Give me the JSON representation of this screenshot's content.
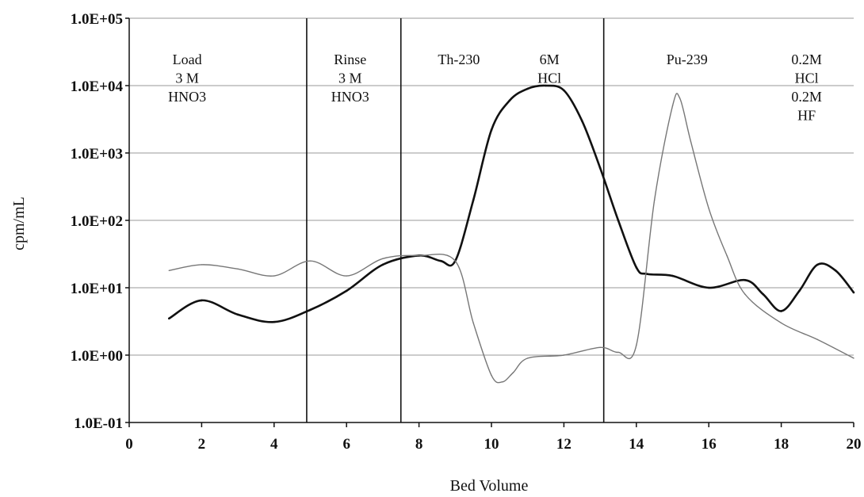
{
  "chart_data": {
    "type": "line",
    "title": "",
    "xlabel": "Bed Volume",
    "ylabel": "cpm/mL",
    "xlim": [
      0,
      20
    ],
    "ylim": [
      0.1,
      100000
    ],
    "yscale": "log",
    "grid": "horizontal",
    "legend": "none",
    "x_ticks": [
      0,
      2,
      4,
      6,
      8,
      10,
      12,
      14,
      16,
      18,
      20
    ],
    "x_tick_labels": [
      "0",
      "2",
      "4",
      "6",
      "8",
      "10",
      "12",
      "14",
      "16",
      "18",
      "20"
    ],
    "y_ticks": [
      0.1,
      1,
      10,
      100,
      1000,
      10000,
      100000
    ],
    "y_tick_labels": [
      "1.0E-01",
      "1.0E+00",
      "1.0E+01",
      "1.0E+02",
      "1.0E+03",
      "1.0E+04",
      "1.0E+05"
    ],
    "vertical_lines": [
      4.9,
      7.5,
      13.1
    ],
    "series": [
      {
        "color": "#111111",
        "x": [
          1.1,
          2.0,
          3.0,
          4.0,
          5.0,
          6.0,
          7.0,
          8.0,
          8.6,
          9.0,
          9.5,
          10.0,
          10.5,
          11.0,
          11.5,
          12.0,
          12.5,
          13.0,
          13.5,
          14.0,
          14.3,
          15.0,
          16.0,
          17.0,
          17.5,
          18.0,
          18.5,
          19.0,
          19.5,
          20.0
        ],
        "y": [
          3.5,
          6.5,
          4.0,
          3.1,
          4.7,
          9.0,
          22.0,
          30.0,
          25.0,
          25.0,
          200.0,
          2200.0,
          6000.0,
          9000.0,
          10000.0,
          8500.0,
          3000.0,
          600.0,
          100.0,
          20.0,
          16.0,
          15.0,
          10.0,
          13.0,
          8.0,
          4.5,
          9.0,
          22.0,
          18.0,
          8.5
        ]
      },
      {
        "color": "#777777",
        "x": [
          1.1,
          2.0,
          3.0,
          4.0,
          5.0,
          6.0,
          7.0,
          8.0,
          9.0,
          9.5,
          10.0,
          10.3,
          10.6,
          11.0,
          12.0,
          13.0,
          13.5,
          14.0,
          14.5,
          15.0,
          15.2,
          15.5,
          16.0,
          16.5,
          17.0,
          18.0,
          19.0,
          20.0
        ],
        "y": [
          18.0,
          22.0,
          19.0,
          15.0,
          25.0,
          15.0,
          27.0,
          30.0,
          25.0,
          3.0,
          0.5,
          0.4,
          0.55,
          0.9,
          1.0,
          1.3,
          1.1,
          1.4,
          200.0,
          5000.0,
          6500.0,
          1500.0,
          150.0,
          30.0,
          8.0,
          3.0,
          1.7,
          0.9
        ]
      }
    ],
    "annotations": [
      {
        "x": 1.6,
        "lines": [
          "Load",
          "3 M",
          "HNO3"
        ]
      },
      {
        "x": 6.1,
        "lines": [
          "Rinse",
          "3 M",
          "HNO3"
        ]
      },
      {
        "x": 9.1,
        "lines": [
          "Th-230"
        ]
      },
      {
        "x": 11.6,
        "lines": [
          "6M",
          "HCl"
        ]
      },
      {
        "x": 15.4,
        "lines": [
          "Pu-239"
        ]
      },
      {
        "x": 18.7,
        "lines": [
          "0.2M",
          "HCl",
          "0.2M",
          "HF"
        ]
      }
    ]
  }
}
